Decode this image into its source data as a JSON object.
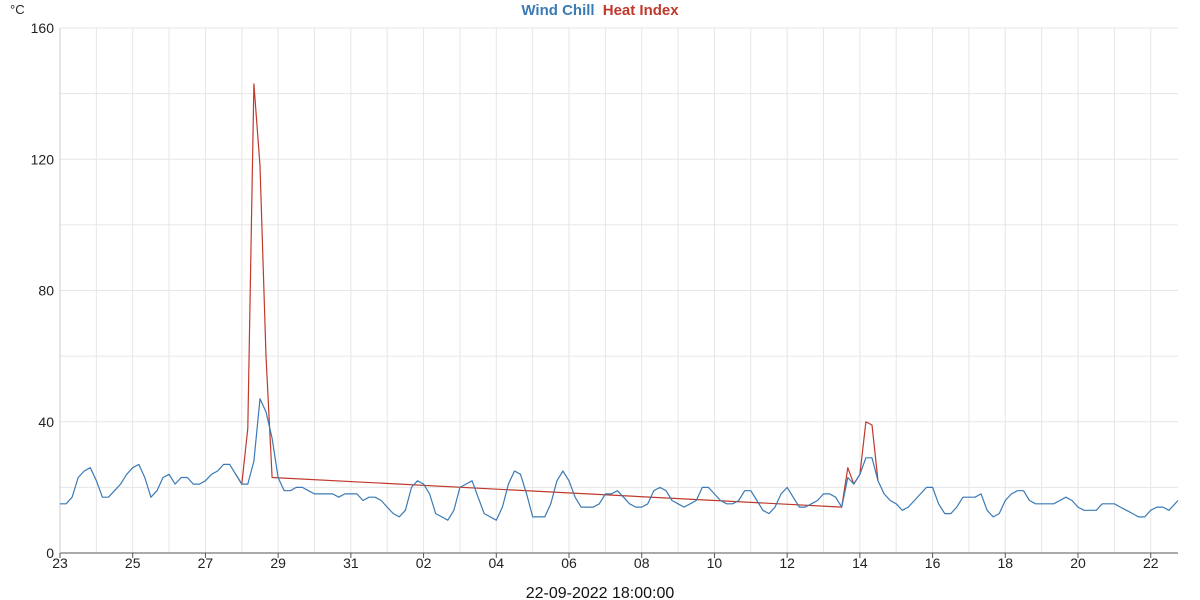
{
  "chart_data": {
    "type": "line",
    "title_series": [
      "Wind Chill",
      "Heat Index"
    ],
    "ylabel": "°C",
    "footer": "22-09-2022 18:00:00",
    "ylim": [
      0,
      160
    ],
    "yticks": [
      0,
      40,
      80,
      120,
      160
    ],
    "xlim": [
      "2022-08-23",
      "2022-09-22T18:00"
    ],
    "xticks": [
      {
        "date": "2022-08-23",
        "label": "23"
      },
      {
        "date": "2022-08-25",
        "label": "25"
      },
      {
        "date": "2022-08-27",
        "label": "27"
      },
      {
        "date": "2022-08-29",
        "label": "29"
      },
      {
        "date": "2022-08-31",
        "label": "31"
      },
      {
        "date": "2022-09-02",
        "label": "02"
      },
      {
        "date": "2022-09-04",
        "label": "04"
      },
      {
        "date": "2022-09-06",
        "label": "06"
      },
      {
        "date": "2022-09-08",
        "label": "08"
      },
      {
        "date": "2022-09-10",
        "label": "10"
      },
      {
        "date": "2022-09-12",
        "label": "12"
      },
      {
        "date": "2022-09-14",
        "label": "14"
      },
      {
        "date": "2022-09-16",
        "label": "16"
      },
      {
        "date": "2022-09-18",
        "label": "18"
      },
      {
        "date": "2022-09-20",
        "label": "20"
      },
      {
        "date": "2022-09-22",
        "label": "22"
      }
    ],
    "grid": true,
    "series": [
      {
        "name": "Wind Chill",
        "color": "#3a7ab5",
        "points": [
          [
            "2022-08-23T00:00",
            15
          ],
          [
            "2022-08-23T04:00",
            15
          ],
          [
            "2022-08-23T08:00",
            17
          ],
          [
            "2022-08-23T12:00",
            23
          ],
          [
            "2022-08-23T16:00",
            25
          ],
          [
            "2022-08-23T20:00",
            26
          ],
          [
            "2022-08-24T00:00",
            22
          ],
          [
            "2022-08-24T04:00",
            17
          ],
          [
            "2022-08-24T08:00",
            17
          ],
          [
            "2022-08-24T12:00",
            19
          ],
          [
            "2022-08-24T16:00",
            21
          ],
          [
            "2022-08-24T20:00",
            24
          ],
          [
            "2022-08-25T00:00",
            26
          ],
          [
            "2022-08-25T04:00",
            27
          ],
          [
            "2022-08-25T08:00",
            23
          ],
          [
            "2022-08-25T12:00",
            17
          ],
          [
            "2022-08-25T16:00",
            19
          ],
          [
            "2022-08-25T20:00",
            23
          ],
          [
            "2022-08-26T00:00",
            24
          ],
          [
            "2022-08-26T04:00",
            21
          ],
          [
            "2022-08-26T08:00",
            23
          ],
          [
            "2022-08-26T12:00",
            23
          ],
          [
            "2022-08-26T16:00",
            21
          ],
          [
            "2022-08-26T20:00",
            21
          ],
          [
            "2022-08-27T00:00",
            22
          ],
          [
            "2022-08-27T04:00",
            24
          ],
          [
            "2022-08-27T08:00",
            25
          ],
          [
            "2022-08-27T12:00",
            27
          ],
          [
            "2022-08-27T16:00",
            27
          ],
          [
            "2022-08-27T20:00",
            24
          ],
          [
            "2022-08-28T00:00",
            21
          ],
          [
            "2022-08-28T04:00",
            21
          ],
          [
            "2022-08-28T08:00",
            28
          ],
          [
            "2022-08-28T12:00",
            47
          ],
          [
            "2022-08-28T16:00",
            43
          ],
          [
            "2022-08-28T20:00",
            35
          ],
          [
            "2022-08-29T00:00",
            23
          ],
          [
            "2022-08-29T04:00",
            19
          ],
          [
            "2022-08-29T08:00",
            19
          ],
          [
            "2022-08-29T12:00",
            20
          ],
          [
            "2022-08-29T16:00",
            20
          ],
          [
            "2022-08-29T20:00",
            19
          ],
          [
            "2022-08-30T00:00",
            18
          ],
          [
            "2022-08-30T04:00",
            18
          ],
          [
            "2022-08-30T08:00",
            18
          ],
          [
            "2022-08-30T12:00",
            18
          ],
          [
            "2022-08-30T16:00",
            17
          ],
          [
            "2022-08-30T20:00",
            18
          ],
          [
            "2022-08-31T00:00",
            18
          ],
          [
            "2022-08-31T04:00",
            18
          ],
          [
            "2022-08-31T08:00",
            16
          ],
          [
            "2022-08-31T12:00",
            17
          ],
          [
            "2022-08-31T16:00",
            17
          ],
          [
            "2022-08-31T20:00",
            16
          ],
          [
            "2022-09-01T00:00",
            14
          ],
          [
            "2022-09-01T04:00",
            12
          ],
          [
            "2022-09-01T08:00",
            11
          ],
          [
            "2022-09-01T12:00",
            13
          ],
          [
            "2022-09-01T16:00",
            20
          ],
          [
            "2022-09-01T20:00",
            22
          ],
          [
            "2022-09-02T00:00",
            21
          ],
          [
            "2022-09-02T04:00",
            18
          ],
          [
            "2022-09-02T08:00",
            12
          ],
          [
            "2022-09-02T12:00",
            11
          ],
          [
            "2022-09-02T16:00",
            10
          ],
          [
            "2022-09-02T20:00",
            13
          ],
          [
            "2022-09-03T00:00",
            20
          ],
          [
            "2022-09-03T04:00",
            21
          ],
          [
            "2022-09-03T08:00",
            22
          ],
          [
            "2022-09-03T12:00",
            17
          ],
          [
            "2022-09-03T16:00",
            12
          ],
          [
            "2022-09-03T20:00",
            11
          ],
          [
            "2022-09-04T00:00",
            10
          ],
          [
            "2022-09-04T04:00",
            14
          ],
          [
            "2022-09-04T08:00",
            21
          ],
          [
            "2022-09-04T12:00",
            25
          ],
          [
            "2022-09-04T16:00",
            24
          ],
          [
            "2022-09-04T20:00",
            18
          ],
          [
            "2022-09-05T00:00",
            11
          ],
          [
            "2022-09-05T04:00",
            11
          ],
          [
            "2022-09-05T08:00",
            11
          ],
          [
            "2022-09-05T12:00",
            15
          ],
          [
            "2022-09-05T16:00",
            22
          ],
          [
            "2022-09-05T20:00",
            25
          ],
          [
            "2022-09-06T00:00",
            22
          ],
          [
            "2022-09-06T04:00",
            17
          ],
          [
            "2022-09-06T08:00",
            14
          ],
          [
            "2022-09-06T12:00",
            14
          ],
          [
            "2022-09-06T16:00",
            14
          ],
          [
            "2022-09-06T20:00",
            15
          ],
          [
            "2022-09-07T00:00",
            18
          ],
          [
            "2022-09-07T04:00",
            18
          ],
          [
            "2022-09-07T08:00",
            19
          ],
          [
            "2022-09-07T12:00",
            17
          ],
          [
            "2022-09-07T16:00",
            15
          ],
          [
            "2022-09-07T20:00",
            14
          ],
          [
            "2022-09-08T00:00",
            14
          ],
          [
            "2022-09-08T04:00",
            15
          ],
          [
            "2022-09-08T08:00",
            19
          ],
          [
            "2022-09-08T12:00",
            20
          ],
          [
            "2022-09-08T16:00",
            19
          ],
          [
            "2022-09-08T20:00",
            16
          ],
          [
            "2022-09-09T00:00",
            15
          ],
          [
            "2022-09-09T04:00",
            14
          ],
          [
            "2022-09-09T08:00",
            15
          ],
          [
            "2022-09-09T12:00",
            16
          ],
          [
            "2022-09-09T16:00",
            20
          ],
          [
            "2022-09-09T20:00",
            20
          ],
          [
            "2022-09-10T00:00",
            18
          ],
          [
            "2022-09-10T04:00",
            16
          ],
          [
            "2022-09-10T08:00",
            15
          ],
          [
            "2022-09-10T12:00",
            15
          ],
          [
            "2022-09-10T16:00",
            16
          ],
          [
            "2022-09-10T20:00",
            19
          ],
          [
            "2022-09-11T00:00",
            19
          ],
          [
            "2022-09-11T04:00",
            16
          ],
          [
            "2022-09-11T08:00",
            13
          ],
          [
            "2022-09-11T12:00",
            12
          ],
          [
            "2022-09-11T16:00",
            14
          ],
          [
            "2022-09-11T20:00",
            18
          ],
          [
            "2022-09-12T00:00",
            20
          ],
          [
            "2022-09-12T04:00",
            17
          ],
          [
            "2022-09-12T08:00",
            14
          ],
          [
            "2022-09-12T12:00",
            14
          ],
          [
            "2022-09-12T16:00",
            15
          ],
          [
            "2022-09-12T20:00",
            16
          ],
          [
            "2022-09-13T00:00",
            18
          ],
          [
            "2022-09-13T04:00",
            18
          ],
          [
            "2022-09-13T08:00",
            17
          ],
          [
            "2022-09-13T12:00",
            14
          ],
          [
            "2022-09-13T16:00",
            23
          ],
          [
            "2022-09-13T20:00",
            21
          ],
          [
            "2022-09-14T00:00",
            24
          ],
          [
            "2022-09-14T04:00",
            29
          ],
          [
            "2022-09-14T08:00",
            29
          ],
          [
            "2022-09-14T12:00",
            22
          ],
          [
            "2022-09-14T16:00",
            18
          ],
          [
            "2022-09-14T20:00",
            16
          ],
          [
            "2022-09-15T00:00",
            15
          ],
          [
            "2022-09-15T04:00",
            13
          ],
          [
            "2022-09-15T08:00",
            14
          ],
          [
            "2022-09-15T12:00",
            16
          ],
          [
            "2022-09-15T16:00",
            18
          ],
          [
            "2022-09-15T20:00",
            20
          ],
          [
            "2022-09-16T00:00",
            20
          ],
          [
            "2022-09-16T04:00",
            15
          ],
          [
            "2022-09-16T08:00",
            12
          ],
          [
            "2022-09-16T12:00",
            12
          ],
          [
            "2022-09-16T16:00",
            14
          ],
          [
            "2022-09-16T20:00",
            17
          ],
          [
            "2022-09-17T00:00",
            17
          ],
          [
            "2022-09-17T04:00",
            17
          ],
          [
            "2022-09-17T08:00",
            18
          ],
          [
            "2022-09-17T12:00",
            13
          ],
          [
            "2022-09-17T16:00",
            11
          ],
          [
            "2022-09-17T20:00",
            12
          ],
          [
            "2022-09-18T00:00",
            16
          ],
          [
            "2022-09-18T04:00",
            18
          ],
          [
            "2022-09-18T08:00",
            19
          ],
          [
            "2022-09-18T12:00",
            19
          ],
          [
            "2022-09-18T16:00",
            16
          ],
          [
            "2022-09-18T20:00",
            15
          ],
          [
            "2022-09-19T00:00",
            15
          ],
          [
            "2022-09-19T04:00",
            15
          ],
          [
            "2022-09-19T08:00",
            15
          ],
          [
            "2022-09-19T12:00",
            16
          ],
          [
            "2022-09-19T16:00",
            17
          ],
          [
            "2022-09-19T20:00",
            16
          ],
          [
            "2022-09-20T00:00",
            14
          ],
          [
            "2022-09-20T04:00",
            13
          ],
          [
            "2022-09-20T08:00",
            13
          ],
          [
            "2022-09-20T12:00",
            13
          ],
          [
            "2022-09-20T16:00",
            15
          ],
          [
            "2022-09-20T20:00",
            15
          ],
          [
            "2022-09-21T00:00",
            15
          ],
          [
            "2022-09-21T04:00",
            14
          ],
          [
            "2022-09-21T08:00",
            13
          ],
          [
            "2022-09-21T12:00",
            12
          ],
          [
            "2022-09-21T16:00",
            11
          ],
          [
            "2022-09-21T20:00",
            11
          ],
          [
            "2022-09-22T00:00",
            13
          ],
          [
            "2022-09-22T04:00",
            14
          ],
          [
            "2022-09-22T08:00",
            14
          ],
          [
            "2022-09-22T12:00",
            13
          ],
          [
            "2022-09-22T16:00",
            15
          ],
          [
            "2022-09-22T18:00",
            16
          ]
        ]
      },
      {
        "name": "Heat Index",
        "color": "#c0392b",
        "points": [
          [
            "2022-08-27T20:00",
            24
          ],
          [
            "2022-08-28T00:00",
            21
          ],
          [
            "2022-08-28T04:00",
            38
          ],
          [
            "2022-08-28T08:00",
            143
          ],
          [
            "2022-08-28T12:00",
            118
          ],
          [
            "2022-08-28T16:00",
            60
          ],
          [
            "2022-08-28T20:00",
            23
          ],
          [
            "2022-09-13T12:00",
            14
          ],
          [
            "2022-09-13T16:00",
            26
          ],
          [
            "2022-09-13T20:00",
            21
          ],
          [
            "2022-09-14T00:00",
            24
          ],
          [
            "2022-09-14T04:00",
            40
          ],
          [
            "2022-09-14T08:00",
            39
          ],
          [
            "2022-09-14T12:00",
            22
          ]
        ]
      }
    ]
  }
}
